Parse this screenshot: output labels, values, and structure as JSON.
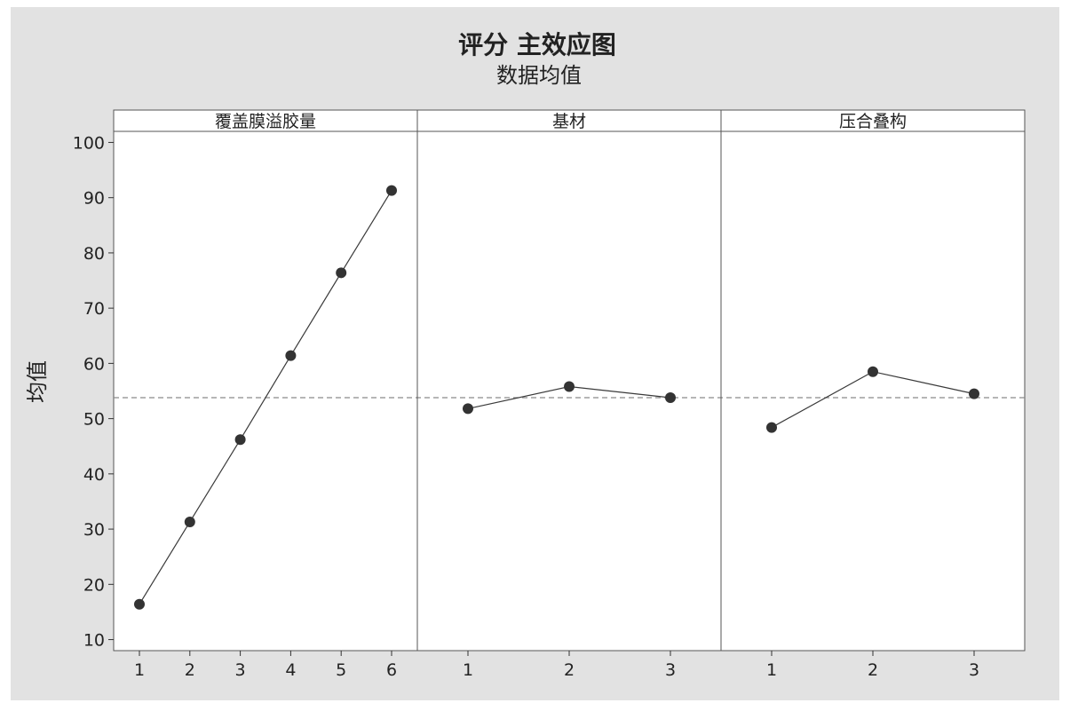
{
  "chart_data": {
    "type": "line",
    "title": "评分 主效应图",
    "subtitle": "数据均值",
    "ylabel": "均值",
    "ylim": [
      8,
      102
    ],
    "yticks": [
      10,
      20,
      30,
      40,
      50,
      60,
      70,
      80,
      90,
      100
    ],
    "reference_line": 53.8,
    "grid": false,
    "panels": [
      {
        "name": "覆盖膜溢胶量",
        "categories": [
          "1",
          "2",
          "3",
          "4",
          "5",
          "6"
        ],
        "values": [
          16.4,
          31.3,
          46.2,
          61.4,
          76.4,
          91.3
        ]
      },
      {
        "name": "基材",
        "categories": [
          "1",
          "2",
          "3"
        ],
        "values": [
          51.8,
          55.8,
          53.8
        ]
      },
      {
        "name": "压合叠构",
        "categories": [
          "1",
          "2",
          "3"
        ],
        "values": [
          48.4,
          58.5,
          54.5
        ]
      }
    ]
  },
  "colors": {
    "background": "#e2e2e2",
    "plot_area": "#ffffff",
    "line": "#3a3a3a",
    "marker": "#333333",
    "reference": "#8a8a8a"
  }
}
